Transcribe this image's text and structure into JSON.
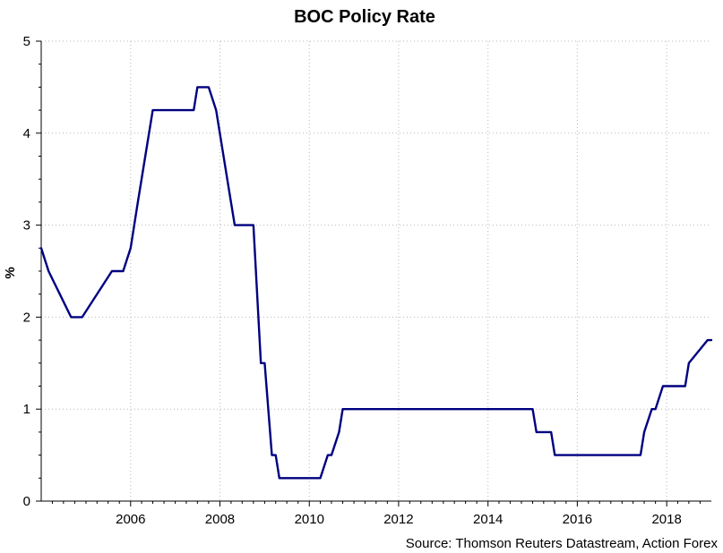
{
  "chart_data": {
    "type": "line",
    "title": "BOC Policy Rate",
    "xlabel": "",
    "ylabel": "%",
    "source": "Source: Thomson Reuters Datastream, Action Forex",
    "xlim": [
      "2004-01-01",
      "2019-01-01"
    ],
    "ylim": [
      0,
      5
    ],
    "xticks": [
      "2006",
      "2008",
      "2010",
      "2012",
      "2014",
      "2016",
      "2018"
    ],
    "yticks": [
      "0",
      "1",
      "2",
      "3",
      "4",
      "5"
    ],
    "grid": true,
    "line_color": "#000080",
    "series": [
      {
        "x": [
          "2004-01-01",
          "2004-03-01",
          "2004-06-01",
          "2004-09-01",
          "2004-12-01",
          "2005-08-01",
          "2005-09-01",
          "2005-11-01",
          "2006-01-01",
          "2006-03-01",
          "2006-05-01",
          "2006-07-01",
          "2007-06-01",
          "2007-07-01",
          "2007-10-01",
          "2007-12-01",
          "2008-03-01",
          "2008-05-01",
          "2008-07-01",
          "2008-09-01",
          "2008-10-01",
          "2008-12-01",
          "2009-01-01",
          "2009-03-01",
          "2009-04-01",
          "2009-05-01",
          "2010-04-01",
          "2010-06-01",
          "2010-07-01",
          "2010-09-01",
          "2010-10-01",
          "2015-01-01",
          "2015-02-01",
          "2015-06-01",
          "2015-07-01",
          "2015-09-01",
          "2017-06-01",
          "2017-07-01",
          "2017-09-01",
          "2017-10-01",
          "2017-12-01",
          "2018-01-01",
          "2018-06-01",
          "2018-07-01",
          "2018-12-01",
          "2019-01-01"
        ],
        "values": [
          2.75,
          2.5,
          2.25,
          2.0,
          2.0,
          2.5,
          2.5,
          2.5,
          2.75,
          3.25,
          3.75,
          4.25,
          4.25,
          4.5,
          4.5,
          4.25,
          3.5,
          3.0,
          3.0,
          3.0,
          3.0,
          1.5,
          1.5,
          0.5,
          0.5,
          0.25,
          0.25,
          0.5,
          0.5,
          0.75,
          1.0,
          1.0,
          0.75,
          0.75,
          0.5,
          0.5,
          0.5,
          0.75,
          1.0,
          1.0,
          1.25,
          1.25,
          1.25,
          1.5,
          1.75,
          1.75
        ]
      }
    ]
  }
}
